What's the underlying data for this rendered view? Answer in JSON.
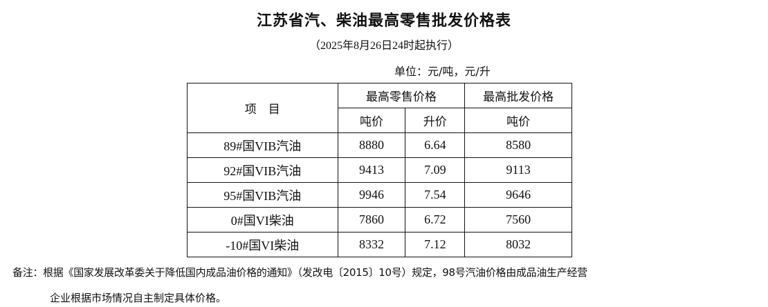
{
  "title": "江苏省汽、柴油最高零售批发价格表",
  "subtitle": "（2025年8月26日24时起执行）",
  "unit": "单位：元/吨，元/升",
  "table": {
    "headers": {
      "item": "项　目",
      "retail": "最高零售价格",
      "wholesale": "最高批发价格",
      "retail_ton": "吨价",
      "retail_liter": "升价",
      "wholesale_ton": "吨价"
    },
    "rows": [
      {
        "name": "89#国VIB汽油",
        "retail_ton": "8880",
        "retail_liter": "6.64",
        "wholesale_ton": "8580"
      },
      {
        "name": "92#国VIB汽油",
        "retail_ton": "9413",
        "retail_liter": "7.09",
        "wholesale_ton": "9113"
      },
      {
        "name": "95#国VIB汽油",
        "retail_ton": "9946",
        "retail_liter": "7.54",
        "wholesale_ton": "9646"
      },
      {
        "name": "0#国VI柴油",
        "retail_ton": "7860",
        "retail_liter": "6.72",
        "wholesale_ton": "7560"
      },
      {
        "name": "-10#国VI柴油",
        "retail_ton": "8332",
        "retail_liter": "7.12",
        "wholesale_ton": "8032"
      }
    ]
  },
  "note": {
    "line1": "备注：根据《国家发展改革委关于降低国内成品油价格的通知》（发改电〔2015〕10号）规定，98号汽油价格由成品油生产经营",
    "line2": "企业根据市场情况自主制定具体价格。"
  }
}
